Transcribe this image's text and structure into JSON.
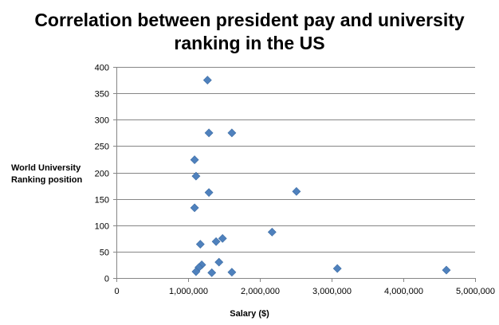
{
  "chart_data": {
    "type": "scatter",
    "title_line1": "Correlation between president pay and university",
    "title_line2": "ranking in the US",
    "xlabel": "Salary  ($)",
    "ylabel_line1": "World University",
    "ylabel_line2": "Ranking position",
    "xlim": [
      0,
      5000000
    ],
    "ylim": [
      0,
      400
    ],
    "xticks": [
      0,
      1000000,
      2000000,
      3000000,
      4000000,
      5000000
    ],
    "xtick_labels": [
      "0",
      "1,000,000",
      "2,000,000",
      "3,000,000",
      "4,000,000",
      "5,000,000"
    ],
    "yticks": [
      0,
      50,
      100,
      150,
      200,
      250,
      300,
      350,
      400
    ],
    "ytick_labels": [
      "0",
      "50",
      "100",
      "150",
      "200",
      "250",
      "300",
      "350",
      "400"
    ],
    "grid": true,
    "marker": "diamond",
    "color": "#4F81BD",
    "points": [
      {
        "x": 1270000,
        "y": 375
      },
      {
        "x": 1290000,
        "y": 275
      },
      {
        "x": 1610000,
        "y": 275
      },
      {
        "x": 1090000,
        "y": 224
      },
      {
        "x": 1110000,
        "y": 193
      },
      {
        "x": 1290000,
        "y": 162
      },
      {
        "x": 2510000,
        "y": 164
      },
      {
        "x": 1090000,
        "y": 133
      },
      {
        "x": 2170000,
        "y": 87
      },
      {
        "x": 1480000,
        "y": 75
      },
      {
        "x": 1390000,
        "y": 69
      },
      {
        "x": 1170000,
        "y": 64
      },
      {
        "x": 1430000,
        "y": 30
      },
      {
        "x": 1190000,
        "y": 25
      },
      {
        "x": 1150000,
        "y": 20
      },
      {
        "x": 1110000,
        "y": 12
      },
      {
        "x": 1330000,
        "y": 10
      },
      {
        "x": 1610000,
        "y": 11
      },
      {
        "x": 3080000,
        "y": 18
      },
      {
        "x": 4600000,
        "y": 15
      }
    ]
  }
}
